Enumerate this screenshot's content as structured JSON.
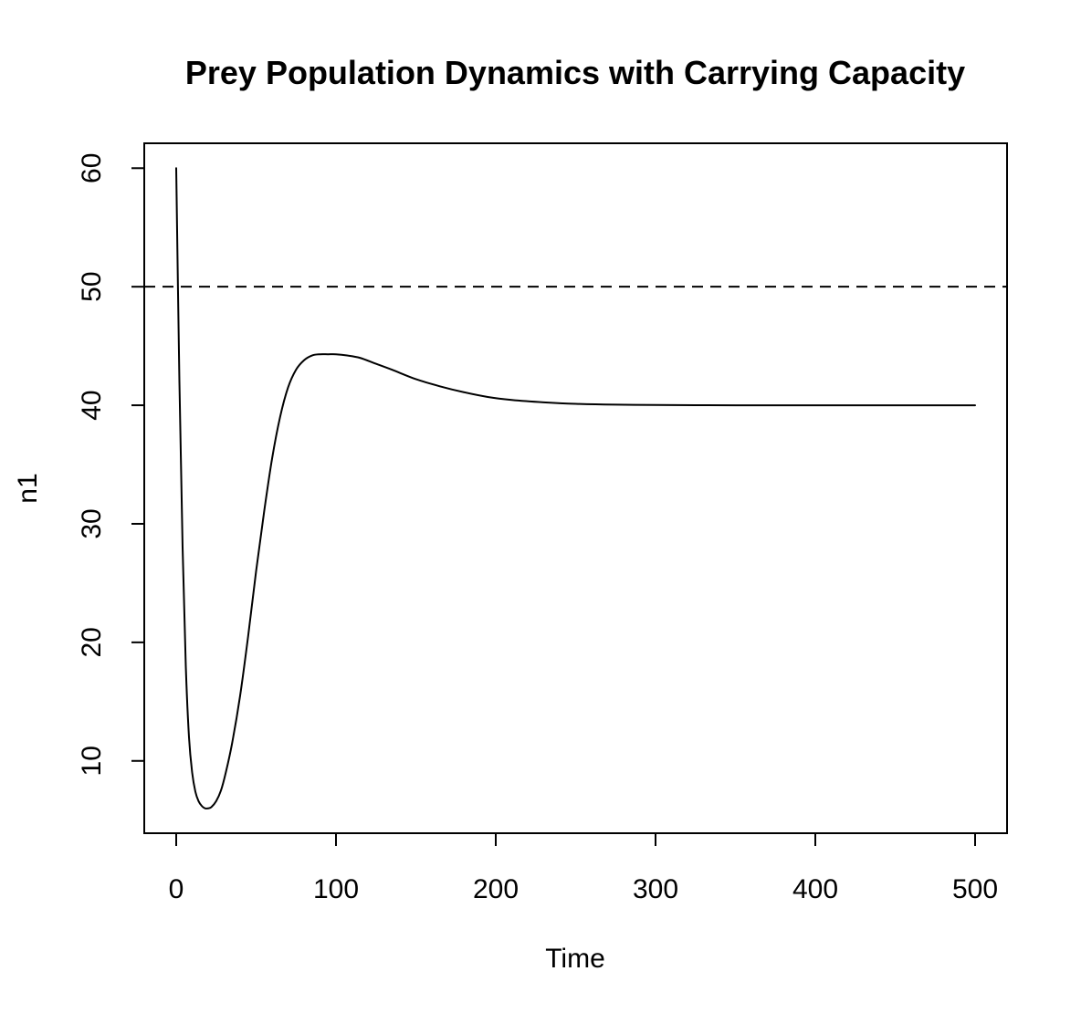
{
  "chart_data": {
    "type": "line",
    "title": "Prey Population Dynamics with Carrying Capacity",
    "xlabel": "Time",
    "ylabel": "n1",
    "xlim": [
      -20,
      520
    ],
    "ylim": [
      3.9,
      62.1
    ],
    "xticks": [
      0,
      100,
      200,
      300,
      400,
      500
    ],
    "yticks": [
      10,
      20,
      30,
      40,
      50,
      60
    ],
    "grid": false,
    "legend": "none",
    "series": [
      {
        "x": [
          0,
          2,
          4,
          6,
          8,
          10,
          12,
          14,
          16,
          18,
          20,
          22,
          25,
          28,
          31,
          35,
          40,
          45,
          50,
          55,
          60,
          65,
          70,
          75,
          80,
          85,
          90,
          95,
          100,
          107,
          115,
          125,
          135,
          150,
          165,
          180,
          195,
          210,
          230,
          250,
          275,
          300,
          325,
          350,
          400,
          450,
          500
        ],
        "y": [
          60,
          42,
          28,
          18,
          12,
          9,
          7.4,
          6.6,
          6.2,
          6.0,
          6.0,
          6.1,
          6.6,
          7.5,
          9.0,
          11.5,
          15.5,
          20.5,
          26.0,
          31.0,
          35.5,
          39.0,
          41.5,
          43.0,
          43.8,
          44.2,
          44.3,
          44.3,
          44.3,
          44.2,
          44.0,
          43.5,
          43.0,
          42.2,
          41.6,
          41.1,
          40.7,
          40.45,
          40.25,
          40.12,
          40.05,
          40.02,
          40.01,
          40.0,
          40.0,
          40.0,
          40.0
        ]
      }
    ],
    "reference_lines": [
      {
        "axis": "y",
        "value": 50,
        "style": "dashed"
      }
    ],
    "colors": {
      "line": "#000000",
      "frame": "#000000",
      "background": "#ffffff"
    }
  }
}
